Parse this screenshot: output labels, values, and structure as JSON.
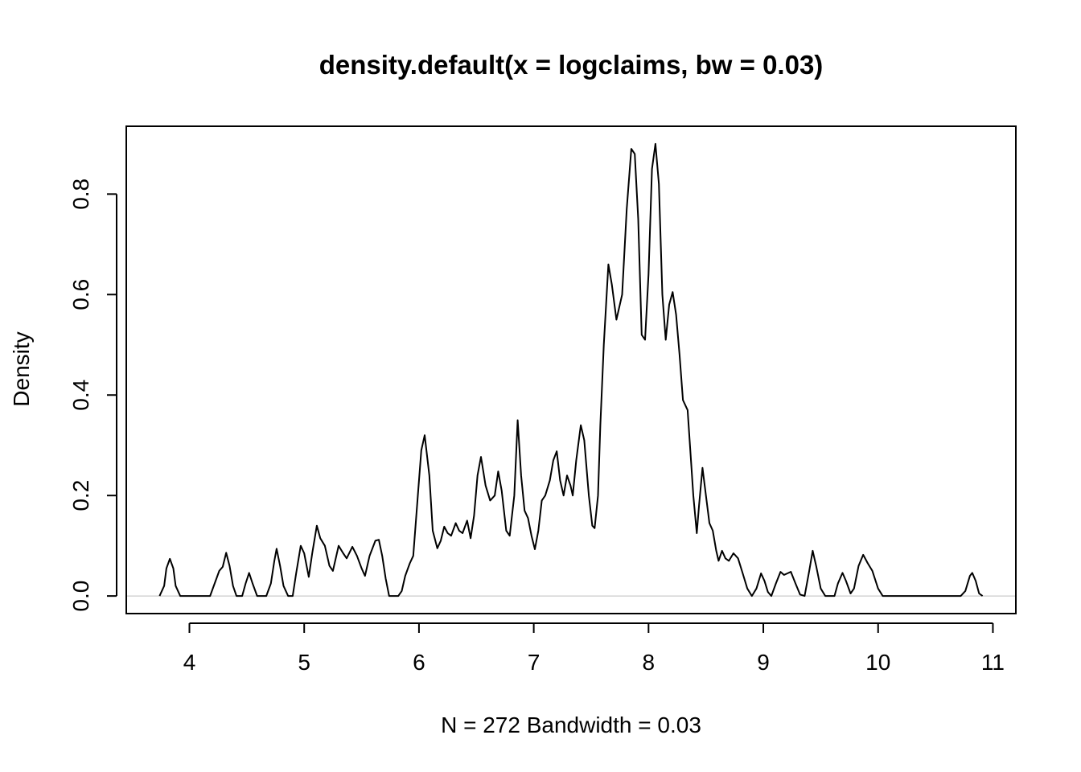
{
  "chart_data": {
    "type": "line",
    "title": "density.default(x = logclaims, bw = 0.03)",
    "xlabel": "N = 272   Bandwidth = 0.03",
    "ylabel": "Density",
    "xlim": [
      3.45,
      11.2
    ],
    "ylim": [
      -0.035,
      0.935
    ],
    "x_ticks": [
      4,
      5,
      6,
      7,
      8,
      9,
      10,
      11
    ],
    "y_ticks": [
      0.0,
      0.2,
      0.4,
      0.6,
      0.8
    ],
    "x_tick_labels": [
      "4",
      "5",
      "6",
      "7",
      "8",
      "9",
      "10",
      "11"
    ],
    "y_tick_labels": [
      "0.0",
      "0.2",
      "0.4",
      "0.6",
      "0.8"
    ],
    "grid": false,
    "zero_line": true,
    "colors": {
      "line": "#000000",
      "zero_line": "#bebebe",
      "axes": "#000000"
    },
    "series": [
      {
        "points": [
          [
            3.74,
            0.0
          ],
          [
            3.78,
            0.02
          ],
          [
            3.8,
            0.055
          ],
          [
            3.83,
            0.074
          ],
          [
            3.86,
            0.055
          ],
          [
            3.88,
            0.02
          ],
          [
            3.92,
            0.0
          ],
          [
            4.18,
            0.0
          ],
          [
            4.22,
            0.025
          ],
          [
            4.26,
            0.05
          ],
          [
            4.29,
            0.058
          ],
          [
            4.32,
            0.086
          ],
          [
            4.35,
            0.06
          ],
          [
            4.38,
            0.02
          ],
          [
            4.41,
            0.0
          ],
          [
            4.46,
            0.0
          ],
          [
            4.49,
            0.025
          ],
          [
            4.52,
            0.046
          ],
          [
            4.55,
            0.025
          ],
          [
            4.59,
            0.0
          ],
          [
            4.67,
            0.0
          ],
          [
            4.71,
            0.025
          ],
          [
            4.74,
            0.07
          ],
          [
            4.76,
            0.094
          ],
          [
            4.79,
            0.06
          ],
          [
            4.82,
            0.02
          ],
          [
            4.86,
            0.0
          ],
          [
            4.9,
            0.0
          ],
          [
            4.93,
            0.045
          ],
          [
            4.97,
            0.1
          ],
          [
            5.0,
            0.085
          ],
          [
            5.04,
            0.038
          ],
          [
            5.07,
            0.085
          ],
          [
            5.11,
            0.14
          ],
          [
            5.14,
            0.115
          ],
          [
            5.18,
            0.1
          ],
          [
            5.22,
            0.06
          ],
          [
            5.25,
            0.05
          ],
          [
            5.3,
            0.1
          ],
          [
            5.34,
            0.085
          ],
          [
            5.37,
            0.075
          ],
          [
            5.42,
            0.098
          ],
          [
            5.46,
            0.08
          ],
          [
            5.5,
            0.055
          ],
          [
            5.53,
            0.04
          ],
          [
            5.57,
            0.08
          ],
          [
            5.62,
            0.11
          ],
          [
            5.65,
            0.112
          ],
          [
            5.68,
            0.08
          ],
          [
            5.71,
            0.035
          ],
          [
            5.74,
            0.0
          ],
          [
            5.82,
            0.0
          ],
          [
            5.85,
            0.01
          ],
          [
            5.88,
            0.04
          ],
          [
            5.92,
            0.065
          ],
          [
            5.95,
            0.08
          ],
          [
            5.99,
            0.2
          ],
          [
            6.02,
            0.29
          ],
          [
            6.05,
            0.32
          ],
          [
            6.09,
            0.24
          ],
          [
            6.12,
            0.13
          ],
          [
            6.16,
            0.095
          ],
          [
            6.19,
            0.11
          ],
          [
            6.22,
            0.138
          ],
          [
            6.25,
            0.125
          ],
          [
            6.28,
            0.12
          ],
          [
            6.32,
            0.145
          ],
          [
            6.35,
            0.13
          ],
          [
            6.38,
            0.125
          ],
          [
            6.42,
            0.15
          ],
          [
            6.45,
            0.115
          ],
          [
            6.48,
            0.16
          ],
          [
            6.51,
            0.24
          ],
          [
            6.54,
            0.277
          ],
          [
            6.58,
            0.22
          ],
          [
            6.62,
            0.19
          ],
          [
            6.66,
            0.2
          ],
          [
            6.69,
            0.248
          ],
          [
            6.72,
            0.21
          ],
          [
            6.76,
            0.13
          ],
          [
            6.79,
            0.12
          ],
          [
            6.83,
            0.2
          ],
          [
            6.86,
            0.35
          ],
          [
            6.89,
            0.24
          ],
          [
            6.92,
            0.17
          ],
          [
            6.95,
            0.155
          ],
          [
            6.98,
            0.12
          ],
          [
            7.01,
            0.093
          ],
          [
            7.04,
            0.13
          ],
          [
            7.07,
            0.19
          ],
          [
            7.1,
            0.2
          ],
          [
            7.14,
            0.23
          ],
          [
            7.17,
            0.27
          ],
          [
            7.2,
            0.288
          ],
          [
            7.23,
            0.23
          ],
          [
            7.26,
            0.2
          ],
          [
            7.29,
            0.24
          ],
          [
            7.32,
            0.22
          ],
          [
            7.34,
            0.2
          ],
          [
            7.37,
            0.27
          ],
          [
            7.41,
            0.34
          ],
          [
            7.44,
            0.31
          ],
          [
            7.48,
            0.2
          ],
          [
            7.51,
            0.14
          ],
          [
            7.53,
            0.135
          ],
          [
            7.56,
            0.2
          ],
          [
            7.58,
            0.34
          ],
          [
            7.61,
            0.5
          ],
          [
            7.65,
            0.66
          ],
          [
            7.68,
            0.62
          ],
          [
            7.72,
            0.55
          ],
          [
            7.77,
            0.6
          ],
          [
            7.81,
            0.77
          ],
          [
            7.85,
            0.89
          ],
          [
            7.88,
            0.88
          ],
          [
            7.91,
            0.75
          ],
          [
            7.94,
            0.52
          ],
          [
            7.97,
            0.51
          ],
          [
            8.0,
            0.64
          ],
          [
            8.03,
            0.85
          ],
          [
            8.06,
            0.9
          ],
          [
            8.09,
            0.82
          ],
          [
            8.12,
            0.6
          ],
          [
            8.15,
            0.51
          ],
          [
            8.18,
            0.58
          ],
          [
            8.21,
            0.605
          ],
          [
            8.24,
            0.56
          ],
          [
            8.27,
            0.48
          ],
          [
            8.3,
            0.39
          ],
          [
            8.34,
            0.37
          ],
          [
            8.37,
            0.27
          ],
          [
            8.39,
            0.2
          ],
          [
            8.42,
            0.125
          ],
          [
            8.44,
            0.18
          ],
          [
            8.47,
            0.255
          ],
          [
            8.5,
            0.2
          ],
          [
            8.53,
            0.145
          ],
          [
            8.56,
            0.13
          ],
          [
            8.59,
            0.09
          ],
          [
            8.61,
            0.07
          ],
          [
            8.64,
            0.09
          ],
          [
            8.67,
            0.075
          ],
          [
            8.7,
            0.07
          ],
          [
            8.74,
            0.085
          ],
          [
            8.78,
            0.075
          ],
          [
            8.82,
            0.045
          ],
          [
            8.86,
            0.015
          ],
          [
            8.9,
            0.0
          ],
          [
            8.94,
            0.015
          ],
          [
            8.98,
            0.045
          ],
          [
            9.01,
            0.03
          ],
          [
            9.04,
            0.008
          ],
          [
            9.07,
            0.0
          ],
          [
            9.11,
            0.025
          ],
          [
            9.15,
            0.048
          ],
          [
            9.18,
            0.042
          ],
          [
            9.21,
            0.045
          ],
          [
            9.24,
            0.048
          ],
          [
            9.28,
            0.025
          ],
          [
            9.32,
            0.003
          ],
          [
            9.36,
            0.0
          ],
          [
            9.4,
            0.05
          ],
          [
            9.43,
            0.09
          ],
          [
            9.46,
            0.06
          ],
          [
            9.5,
            0.015
          ],
          [
            9.54,
            0.0
          ],
          [
            9.62,
            0.0
          ],
          [
            9.65,
            0.025
          ],
          [
            9.69,
            0.046
          ],
          [
            9.72,
            0.03
          ],
          [
            9.76,
            0.005
          ],
          [
            9.79,
            0.015
          ],
          [
            9.83,
            0.06
          ],
          [
            9.87,
            0.082
          ],
          [
            9.91,
            0.065
          ],
          [
            9.95,
            0.05
          ],
          [
            10.0,
            0.015
          ],
          [
            10.04,
            0.0
          ],
          [
            10.72,
            0.0
          ],
          [
            10.76,
            0.01
          ],
          [
            10.8,
            0.04
          ],
          [
            10.82,
            0.046
          ],
          [
            10.85,
            0.03
          ],
          [
            10.88,
            0.005
          ],
          [
            10.91,
            0.0
          ]
        ]
      }
    ]
  }
}
